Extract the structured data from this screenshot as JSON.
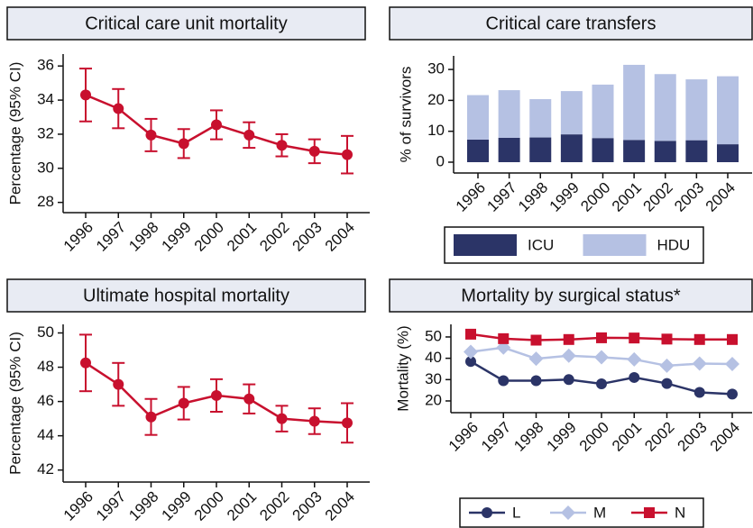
{
  "chart_data": [
    {
      "type": "line",
      "title": "Critical care unit mortality",
      "y_label": "Percentage (95% CI)",
      "categories": [
        "1996",
        "1997",
        "1998",
        "1999",
        "2000",
        "2001",
        "2002",
        "2003",
        "2004"
      ],
      "values": [
        34.3,
        33.5,
        31.95,
        31.45,
        32.55,
        31.95,
        31.35,
        31.0,
        30.8
      ],
      "errors": [
        1.55,
        1.15,
        0.95,
        0.85,
        0.85,
        0.75,
        0.65,
        0.7,
        1.1
      ],
      "color": "#c8102e",
      "ylim": [
        27.4,
        36.7
      ],
      "yticks": [
        28,
        30,
        32,
        34,
        36
      ]
    },
    {
      "type": "stacked_bar",
      "title": "Critical care transfers",
      "y_label": "% of survivors",
      "categories": [
        "1996",
        "1997",
        "1998",
        "1999",
        "2000",
        "2001",
        "2002",
        "2003",
        "2004"
      ],
      "series": [
        {
          "name": "ICU",
          "color": "#2b3467",
          "values": [
            7.3,
            7.9,
            8.0,
            9.0,
            7.8,
            7.2,
            6.9,
            7.1,
            5.8
          ]
        },
        {
          "name": "HDU",
          "color": "#b5c1e3",
          "values": [
            14.4,
            15.4,
            12.4,
            14.0,
            17.3,
            24.3,
            21.6,
            19.7,
            22.0
          ]
        }
      ],
      "ylim": [
        -3.5,
        34.4
      ],
      "yticks": [
        0,
        10,
        20,
        30
      ],
      "legend": "bottom"
    },
    {
      "type": "line",
      "title": "Ultimate hospital mortality",
      "y_label": "Percentage (95% CI)",
      "categories": [
        "1996",
        "1997",
        "1998",
        "1999",
        "2000",
        "2001",
        "2002",
        "2003",
        "2004"
      ],
      "values": [
        48.25,
        47.0,
        45.1,
        45.9,
        46.35,
        46.15,
        45.0,
        44.85,
        44.75
      ],
      "errors": [
        1.65,
        1.25,
        1.05,
        0.95,
        0.95,
        0.85,
        0.75,
        0.75,
        1.15
      ],
      "color": "#c8102e",
      "ylim": [
        41.3,
        50.5
      ],
      "yticks": [
        42,
        44,
        46,
        48,
        50
      ]
    },
    {
      "type": "multiline",
      "title": "Mortality by surgical status*",
      "y_label": "Mortality (%)",
      "categories": [
        "1996",
        "1997",
        "1998",
        "1999",
        "2000",
        "2001",
        "2002",
        "2003",
        "2004"
      ],
      "series": [
        {
          "name": "L",
          "color": "#2b3467",
          "marker": "circle",
          "values": [
            38.5,
            29.5,
            29.5,
            30.0,
            28.0,
            31.0,
            28.2,
            24.0,
            23.2
          ]
        },
        {
          "name": "M",
          "color": "#b5c1e3",
          "marker": "diamond",
          "values": [
            43.0,
            45.0,
            39.8,
            41.2,
            40.5,
            39.5,
            36.5,
            37.5,
            37.3
          ]
        },
        {
          "name": "N",
          "color": "#c8102e",
          "marker": "square",
          "values": [
            51.3,
            49.2,
            48.5,
            48.8,
            49.6,
            49.5,
            49.0,
            48.8,
            48.8
          ]
        }
      ],
      "ylim": [
        14.5,
        55.9
      ],
      "yticks": [
        20,
        30,
        40,
        50
      ],
      "legend": "bottom"
    }
  ]
}
